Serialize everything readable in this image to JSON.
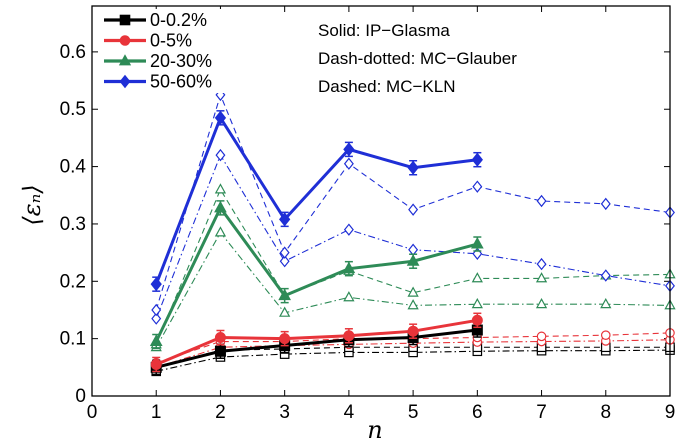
{
  "chart_data": {
    "type": "line",
    "xlabel": "n",
    "ylabel": "⟨εₙ⟩",
    "xlim": [
      0,
      9
    ],
    "ylim": [
      0,
      0.68
    ],
    "x_ticks": [
      "0",
      "1",
      "2",
      "3",
      "4",
      "5",
      "6",
      "7",
      "8",
      "9"
    ],
    "y_ticks": [
      "0",
      "0.1",
      "0.2",
      "0.3",
      "0.4",
      "0.5",
      "0.6"
    ],
    "grid": false,
    "legend_position": "top-left",
    "annotations": [
      "Solid: IP−Glasma",
      "Dash-dotted: MC−Glauber",
      "Dashed: MC−KLN"
    ],
    "legend": [
      {
        "label": "0-0.2%",
        "color": "#000000",
        "marker": "square"
      },
      {
        "label": "0-5%",
        "color": "#e8343a",
        "marker": "circle"
      },
      {
        "label": "20-30%",
        "color": "#2e8b57",
        "marker": "triangle"
      },
      {
        "label": "50-60%",
        "color": "#1f2fd6",
        "marker": "diamond"
      }
    ],
    "series": [
      {
        "centrality": "0-0.2%",
        "model": "IP−Glasma",
        "style": "solid",
        "color": "#000000",
        "marker": "square",
        "x": [
          1,
          2,
          3,
          4,
          5,
          6
        ],
        "y": [
          0.05,
          0.078,
          0.088,
          0.098,
          0.102,
          0.115
        ]
      },
      {
        "centrality": "0-0.2%",
        "model": "MC−Glauber",
        "style": "dash-dotted",
        "color": "#000000",
        "marker": "square",
        "x": [
          1,
          2,
          3,
          4,
          5,
          6,
          7,
          8,
          9
        ],
        "y": [
          0.043,
          0.068,
          0.073,
          0.076,
          0.076,
          0.078,
          0.079,
          0.079,
          0.08
        ]
      },
      {
        "centrality": "0-0.2%",
        "model": "MC−KLN",
        "style": "dashed",
        "color": "#000000",
        "marker": "square",
        "x": [
          1,
          2,
          3,
          4,
          5,
          6,
          7,
          8,
          9
        ],
        "y": [
          0.05,
          0.08,
          0.082,
          0.085,
          0.085,
          0.085,
          0.085,
          0.085,
          0.085
        ]
      },
      {
        "centrality": "0-5%",
        "model": "IP−Glasma",
        "style": "solid",
        "color": "#e8343a",
        "marker": "circle",
        "x": [
          1,
          2,
          3,
          4,
          5,
          6
        ],
        "y": [
          0.055,
          0.102,
          0.1,
          0.105,
          0.113,
          0.132
        ]
      },
      {
        "centrality": "0-5%",
        "model": "MC−Glauber",
        "style": "dash-dotted",
        "color": "#e8343a",
        "marker": "circle",
        "x": [
          1,
          2,
          3,
          4,
          5,
          6,
          7,
          8,
          9
        ],
        "y": [
          0.05,
          0.085,
          0.088,
          0.09,
          0.092,
          0.094,
          0.095,
          0.096,
          0.098
        ]
      },
      {
        "centrality": "0-5%",
        "model": "MC−KLN",
        "style": "dashed",
        "color": "#e8343a",
        "marker": "circle",
        "x": [
          1,
          2,
          3,
          4,
          5,
          6,
          7,
          8,
          9
        ],
        "y": [
          0.058,
          0.095,
          0.095,
          0.1,
          0.1,
          0.102,
          0.104,
          0.106,
          0.11
        ]
      },
      {
        "centrality": "20-30%",
        "model": "IP−Glasma",
        "style": "solid",
        "color": "#2e8b57",
        "marker": "triangle",
        "x": [
          1,
          2,
          3,
          4,
          5,
          6
        ],
        "y": [
          0.095,
          0.328,
          0.175,
          0.222,
          0.235,
          0.265
        ]
      },
      {
        "centrality": "20-30%",
        "model": "MC−Glauber",
        "style": "dash-dotted",
        "color": "#2e8b57",
        "marker": "triangle",
        "x": [
          1,
          2,
          3,
          4,
          5,
          6,
          7,
          8,
          9
        ],
        "y": [
          0.085,
          0.285,
          0.145,
          0.172,
          0.158,
          0.16,
          0.16,
          0.16,
          0.158
        ]
      },
      {
        "centrality": "20-30%",
        "model": "MC−KLN",
        "style": "dashed",
        "color": "#2e8b57",
        "marker": "triangle",
        "x": [
          1,
          2,
          3,
          4,
          5,
          6,
          7,
          8,
          9
        ],
        "y": [
          0.09,
          0.36,
          0.175,
          0.218,
          0.18,
          0.205,
          0.205,
          0.21,
          0.212
        ]
      },
      {
        "centrality": "50-60%",
        "model": "IP−Glasma",
        "style": "solid",
        "color": "#1f2fd6",
        "marker": "diamond",
        "x": [
          1,
          2,
          3,
          4,
          5,
          6
        ],
        "y": [
          0.195,
          0.485,
          0.308,
          0.43,
          0.398,
          0.412
        ]
      },
      {
        "centrality": "50-60%",
        "model": "MC−Glauber",
        "style": "dash-dotted",
        "color": "#1f2fd6",
        "marker": "diamond",
        "x": [
          1,
          2,
          3,
          4,
          5,
          6,
          7,
          8,
          9
        ],
        "y": [
          0.135,
          0.42,
          0.235,
          0.29,
          0.255,
          0.248,
          0.23,
          0.21,
          0.192
        ]
      },
      {
        "centrality": "50-60%",
        "model": "MC−KLN",
        "style": "dashed",
        "color": "#1f2fd6",
        "marker": "diamond",
        "x": [
          1,
          2,
          3,
          4,
          5,
          6,
          7,
          8,
          9
        ],
        "y": [
          0.15,
          0.525,
          0.25,
          0.405,
          0.325,
          0.365,
          0.34,
          0.335,
          0.32
        ]
      }
    ]
  }
}
